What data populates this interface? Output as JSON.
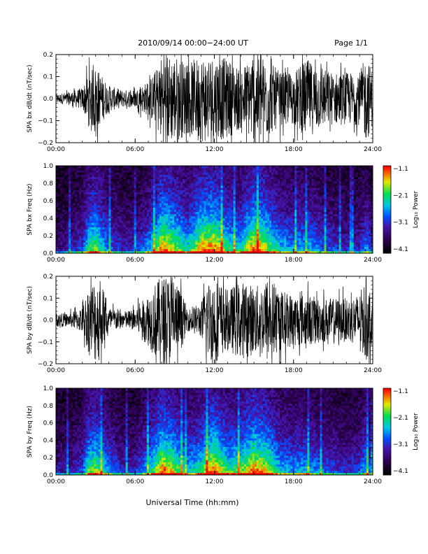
{
  "header": {
    "title": "2010/09/14  00:00−24:00 UT",
    "page": "Page 1/1"
  },
  "footer": {
    "xlabel": "Universal Time (hh:mm)"
  },
  "x_ticks": [
    "00:00",
    "06:00",
    "12:00",
    "18:00",
    "24:00"
  ],
  "colorbar": {
    "label": "Log₁₀ Power",
    "ticks": [
      "−1.1",
      "−2.1",
      "−3.1",
      "−4.1"
    ]
  },
  "chart_data": [
    {
      "type": "line",
      "ylabel": "SPA bx dB/dt (nT/sec)",
      "xlim": [
        0,
        24
      ],
      "ylim": [
        -0.2,
        0.2
      ],
      "yticks": [
        "−0.2",
        "−0.1",
        "0.0",
        "0.1",
        "0.2"
      ],
      "envelope": {
        "hours": [
          0,
          1,
          2,
          2.5,
          3,
          4,
          5,
          6,
          7,
          7.5,
          8,
          8.5,
          9,
          10,
          11,
          11.5,
          12,
          13,
          14,
          15,
          15.5,
          16,
          17,
          18,
          19,
          20,
          21,
          22,
          23,
          23.5,
          24
        ],
        "amplitude": [
          0.02,
          0.03,
          0.05,
          0.12,
          0.15,
          0.06,
          0.04,
          0.04,
          0.08,
          0.12,
          0.2,
          0.2,
          0.2,
          0.16,
          0.2,
          0.2,
          0.2,
          0.18,
          0.14,
          0.2,
          0.2,
          0.18,
          0.12,
          0.12,
          0.18,
          0.14,
          0.12,
          0.12,
          0.12,
          0.2,
          0.12
        ]
      }
    },
    {
      "type": "heatmap",
      "ylabel": "SPA bx Freq (Hz)",
      "xlim": [
        0,
        24
      ],
      "ylim": [
        0,
        1.0
      ],
      "yticks": [
        "0.0",
        "0.2",
        "0.4",
        "0.6",
        "0.8",
        "1.0"
      ],
      "zlim": [
        -4.1,
        -1.1
      ],
      "activity": {
        "hours": [
          0,
          1,
          2,
          2.5,
          3,
          4,
          5,
          6,
          7,
          7.5,
          8,
          8.5,
          9,
          10,
          11,
          11.5,
          12,
          13,
          14,
          15,
          15.5,
          16,
          17,
          18,
          19,
          20,
          21,
          22,
          23,
          23.5,
          24
        ],
        "level": [
          0.2,
          0.25,
          0.35,
          0.6,
          0.7,
          0.4,
          0.3,
          0.3,
          0.45,
          0.6,
          0.85,
          0.8,
          0.7,
          0.55,
          0.8,
          0.85,
          0.85,
          0.6,
          0.55,
          0.85,
          0.8,
          0.7,
          0.5,
          0.45,
          0.5,
          0.4,
          0.35,
          0.3,
          0.3,
          0.45,
          0.3
        ]
      }
    },
    {
      "type": "line",
      "ylabel": "SPA by dB/dt (nT/sec)",
      "xlim": [
        0,
        24
      ],
      "ylim": [
        -0.2,
        0.2
      ],
      "yticks": [
        "−0.2",
        "−0.1",
        "0.0",
        "0.1",
        "0.2"
      ],
      "envelope": {
        "hours": [
          0,
          1,
          2,
          2.5,
          3,
          4,
          5,
          6,
          7,
          7.5,
          8,
          8.5,
          9,
          10,
          11,
          11.5,
          12,
          13,
          14,
          15,
          15.5,
          16,
          17,
          18,
          19,
          20,
          21,
          22,
          23,
          23.5,
          24
        ],
        "amplitude": [
          0.03,
          0.03,
          0.06,
          0.16,
          0.2,
          0.06,
          0.04,
          0.05,
          0.12,
          0.17,
          0.2,
          0.2,
          0.2,
          0.05,
          0.08,
          0.18,
          0.2,
          0.14,
          0.18,
          0.16,
          0.16,
          0.2,
          0.14,
          0.12,
          0.12,
          0.1,
          0.1,
          0.1,
          0.12,
          0.2,
          0.1
        ]
      }
    },
    {
      "type": "heatmap",
      "ylabel": "SPA by Freq (Hz)",
      "xlim": [
        0,
        24
      ],
      "ylim": [
        0,
        1.0
      ],
      "yticks": [
        "0.0",
        "0.2",
        "0.4",
        "0.6",
        "0.8",
        "1.0"
      ],
      "zlim": [
        -4.1,
        -1.1
      ],
      "activity": {
        "hours": [
          0,
          1,
          2,
          2.5,
          3,
          4,
          5,
          6,
          7,
          7.5,
          8,
          8.5,
          9,
          10,
          11,
          11.5,
          12,
          13,
          14,
          15,
          15.5,
          16,
          17,
          18,
          19,
          20,
          21,
          22,
          23,
          23.5,
          24
        ],
        "level": [
          0.25,
          0.25,
          0.35,
          0.65,
          0.7,
          0.45,
          0.3,
          0.3,
          0.5,
          0.65,
          0.85,
          0.8,
          0.7,
          0.5,
          0.6,
          0.8,
          0.85,
          0.6,
          0.65,
          0.85,
          0.8,
          0.75,
          0.5,
          0.45,
          0.5,
          0.4,
          0.35,
          0.3,
          0.35,
          0.5,
          0.3
        ]
      }
    }
  ]
}
